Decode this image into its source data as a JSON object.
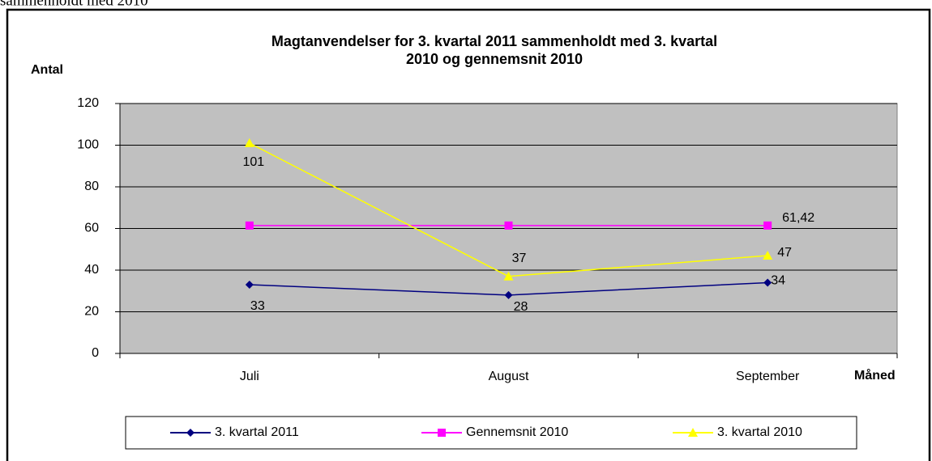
{
  "caption": "sammenholdt med 2010",
  "chart_data": {
    "type": "line",
    "title": [
      "Magtanvendelser for 3. kvartal 2011 sammenholdt med 3. kvartal",
      "2010 og gennemsnit 2010"
    ],
    "y_label": "Antal",
    "x_label": "Måned",
    "categories": [
      "Juli",
      "August",
      "September"
    ],
    "ylim": [
      0,
      120
    ],
    "yticks": [
      0,
      20,
      40,
      60,
      80,
      100,
      120
    ],
    "grid": true,
    "legend": "bottom",
    "series": [
      {
        "name": "3. kvartal 2011",
        "color": "#000080",
        "marker": "diamond",
        "values": [
          33,
          28,
          34
        ]
      },
      {
        "name": "Gennemsnit 2010",
        "color": "#ff00ff",
        "marker": "square",
        "values": [
          61.42,
          61.42,
          61.42
        ],
        "value_labels": [
          null,
          null,
          "61,42"
        ]
      },
      {
        "name": "3. kvartal 2010",
        "color": "#ffff00",
        "marker": "triangle",
        "values": [
          101,
          37,
          47
        ]
      }
    ]
  }
}
